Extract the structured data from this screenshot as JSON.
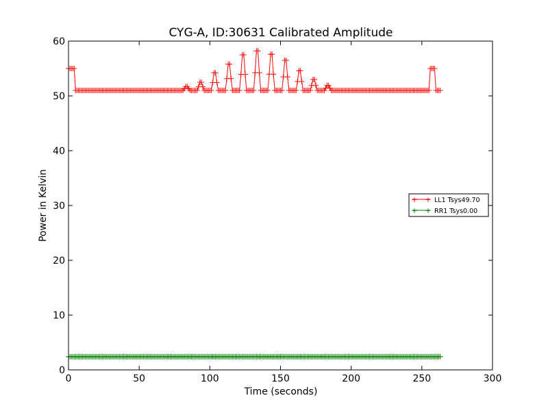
{
  "chart_data": {
    "type": "line",
    "title": "CYG-A, ID:30631 Calibrated Amplitude",
    "xlabel": "Time (seconds)",
    "ylabel": "Power in Kelvin",
    "xlim": [
      0,
      300
    ],
    "ylim": [
      0,
      60
    ],
    "xticks": [
      0,
      50,
      100,
      150,
      200,
      250,
      300
    ],
    "yticks": [
      0,
      10,
      20,
      30,
      40,
      50,
      60
    ],
    "grid": false,
    "legend_position": "center-right",
    "marker": "+",
    "series": [
      {
        "name": "LL1 Tsys49.70",
        "color": "#ff0000",
        "x_start": 0,
        "x_end": 263,
        "x_step": 1,
        "baseline": 51.0,
        "steps": [
          {
            "x_from": 0,
            "x_to": 4.5,
            "value": 55.0
          },
          {
            "x_from": 255.5,
            "x_to": 259.5,
            "value": 55.0
          }
        ],
        "peaks": [
          {
            "x": 83.5,
            "value": 51.7
          },
          {
            "x": 93.5,
            "value": 52.5
          },
          {
            "x": 103.5,
            "value": 54.2
          },
          {
            "x": 113.5,
            "value": 55.8
          },
          {
            "x": 123.5,
            "value": 57.5
          },
          {
            "x": 133.5,
            "value": 58.2
          },
          {
            "x": 143.5,
            "value": 57.6
          },
          {
            "x": 153.5,
            "value": 56.5
          },
          {
            "x": 163.5,
            "value": 54.6
          },
          {
            "x": 173.5,
            "value": 53.0
          },
          {
            "x": 183.5,
            "value": 51.9
          }
        ]
      },
      {
        "name": "RR1 Tsys0.00",
        "color": "#008000",
        "x_start": 0,
        "x_end": 263,
        "x_step": 1,
        "baseline": 2.4,
        "steps": [],
        "peaks": []
      }
    ]
  }
}
